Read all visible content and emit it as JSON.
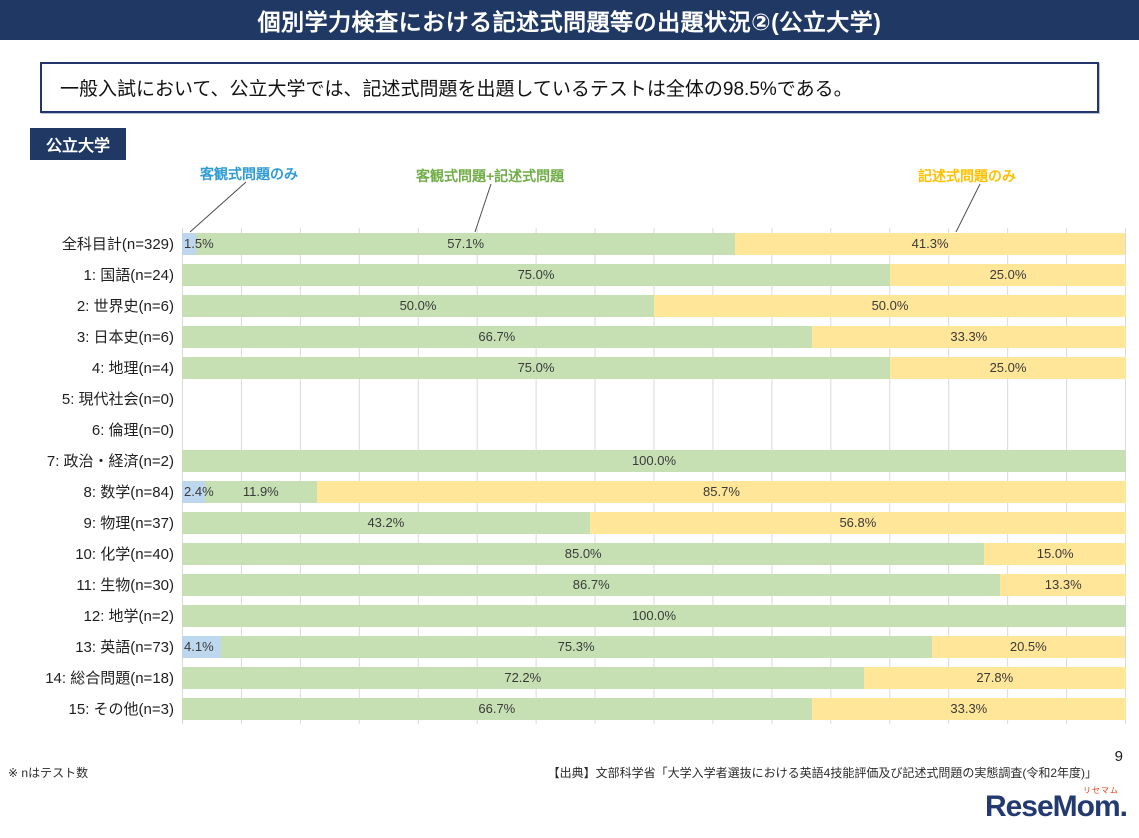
{
  "header": {
    "title": "個別学力検査における記述式問題等の出題状況②(公立大学)"
  },
  "summary": {
    "text": "一般入試において、公立大学では、記述式問題を出題しているテストは全体の98.5%である。"
  },
  "section": {
    "badge": "公立大学"
  },
  "chart_data": {
    "type": "bar",
    "orientation": "horizontal-stacked",
    "value_unit": "%",
    "xlim": [
      0,
      100
    ],
    "x_gridline_divisions": 16,
    "grid": true,
    "categories": [
      "全科目計(n=329)",
      "1: 国語(n=24)",
      "2: 世界史(n=6)",
      "3: 日本史(n=6)",
      "4: 地理(n=4)",
      "5: 現代社会(n=0)",
      "6: 倫理(n=0)",
      "7: 政治・経済(n=2)",
      "8: 数学(n=84)",
      "9: 物理(n=37)",
      "10: 化学(n=40)",
      "11: 生物(n=30)",
      "12: 地学(n=2)",
      "13: 英語(n=73)",
      "14: 総合問題(n=18)",
      "15: その他(n=3)"
    ],
    "series": [
      {
        "name": "客観式問題のみ",
        "color": "#bdd7ee",
        "label_color": "#2e9bd5",
        "values": [
          1.5,
          0,
          0,
          0,
          0,
          0,
          0,
          0,
          2.4,
          0,
          0,
          0,
          0,
          4.1,
          0,
          0
        ]
      },
      {
        "name": "客観式問題+記述式問題",
        "color": "#c6e0b4",
        "label_color": "#70ad47",
        "values": [
          57.1,
          75.0,
          50.0,
          66.7,
          75.0,
          0,
          0,
          100.0,
          11.9,
          43.2,
          85.0,
          86.7,
          100.0,
          75.3,
          72.2,
          66.7
        ]
      },
      {
        "name": "記述式問題のみ",
        "color": "#ffe699",
        "label_color": "#ffc000",
        "values": [
          41.3,
          25.0,
          50.0,
          33.3,
          25.0,
          0,
          0,
          0,
          85.7,
          56.8,
          15.0,
          13.3,
          0,
          20.5,
          27.8,
          33.3
        ]
      }
    ]
  },
  "footer": {
    "note": "※ nはテスト数",
    "source": "【出典】文部科学省「大学入学者選抜における英語4技能評価及び記述式問題の実態調査(令和2年度)」",
    "page_number": "9"
  },
  "logo": {
    "text": "ReseMom.",
    "ruby": "リセマム"
  },
  "colors": {
    "header_bg": "#1f3864",
    "segment_objective": "#bdd7ee",
    "segment_mixed": "#c6e0b4",
    "segment_written": "#ffe699",
    "gridline": "#d9d9d9"
  }
}
